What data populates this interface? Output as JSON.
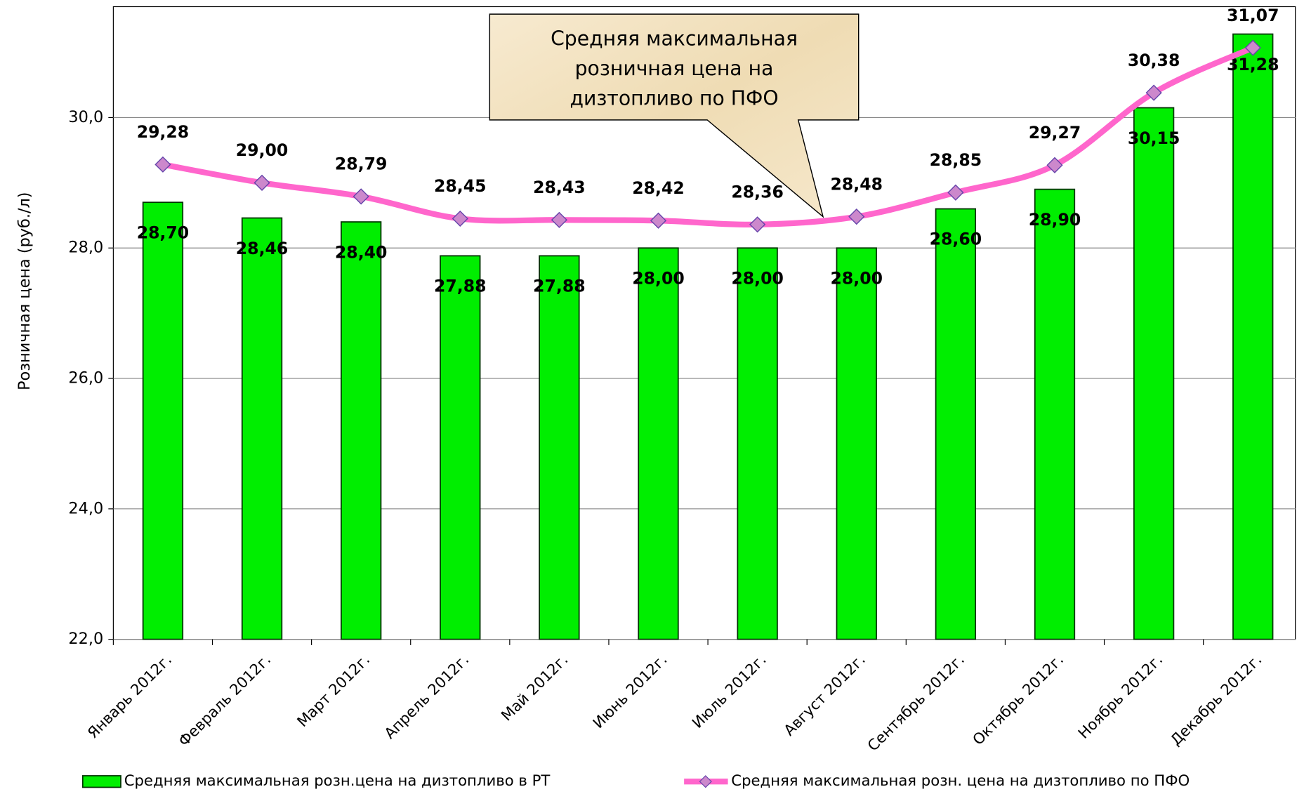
{
  "chart_data": {
    "type": "bar_line",
    "y_axis_label": "Розничная цена (руб./л)",
    "annotation": [
      "Средняя  максимальная",
      "розничная цена на",
      "дизтопливо по ПФО"
    ],
    "categories": [
      "Январь 2012г.",
      "Февраль 2012г.",
      "Март 2012г.",
      "Апрель 2012г.",
      "Май 2012г.",
      "Июнь 2012г.",
      "Июль 2012г.",
      "Август 2012г.",
      "Сентябрь 2012г.",
      "Октябрь 2012г.",
      "Ноябрь 2012г.",
      "Декабрь 2012г."
    ],
    "series": [
      {
        "name": "Средняя максимальная розн.цена на дизтопливо в РТ",
        "type": "bar",
        "color": "#00ee00",
        "values": [
          28.7,
          28.46,
          28.4,
          27.88,
          27.88,
          28.0,
          28.0,
          28.0,
          28.6,
          28.9,
          30.15,
          31.28
        ],
        "value_labels": [
          "28,70",
          "28,46",
          "28,40",
          "27,88",
          "27,88",
          "28,00",
          "28,00",
          "28,00",
          "28,60",
          "28,90",
          "30,15",
          "31,28"
        ]
      },
      {
        "name": "Средняя максимальная розн. цена на дизтопливо по ПФО",
        "type": "line",
        "color": "#ff66cc",
        "marker_color": "#cc88cc",
        "values": [
          29.28,
          29.0,
          28.79,
          28.45,
          28.43,
          28.42,
          28.36,
          28.48,
          28.85,
          29.27,
          30.38,
          31.07
        ],
        "value_labels": [
          "29,28",
          "29,00",
          "28,79",
          "28,45",
          "28,43",
          "28,42",
          "28,36",
          "28,48",
          "28,85",
          "29,27",
          "30,38",
          "31,07"
        ]
      }
    ],
    "ylim": [
      22,
      31.7
    ],
    "yticks": [
      {
        "value": 22,
        "label": "22,0"
      },
      {
        "value": 24,
        "label": "24,0"
      },
      {
        "value": 26,
        "label": "26,0"
      },
      {
        "value": 28,
        "label": "28,0"
      },
      {
        "value": 30,
        "label": "30,0"
      }
    ],
    "grid": true,
    "legend": "bottom"
  }
}
